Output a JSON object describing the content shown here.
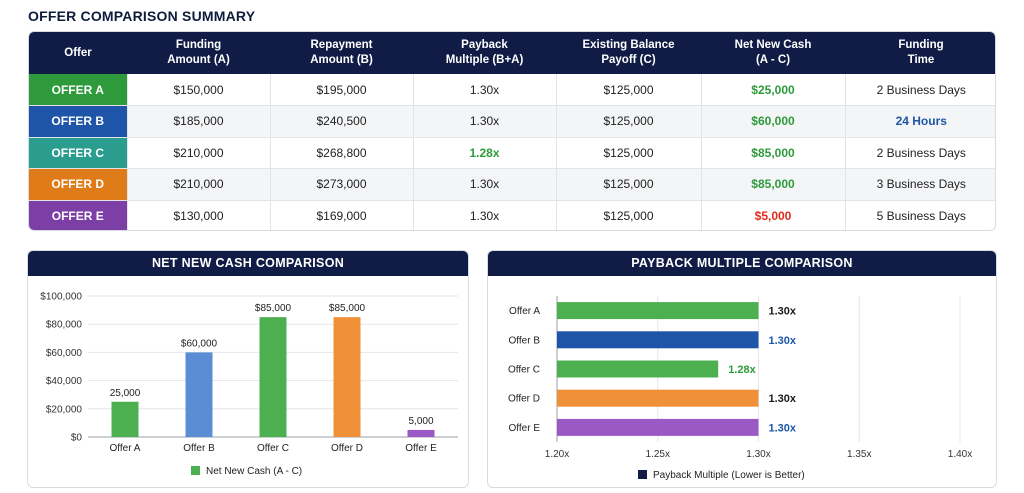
{
  "page_title": "OFFER COMPARISON SUMMARY",
  "table": {
    "headers": [
      "Offer",
      "Funding\nAmount (A)",
      "Repayment\nAmount (B)",
      "Payback\nMultiple (B+A)",
      "Existing Balance\nPayoff (C)",
      "Net New Cash\n(A - C)",
      "Funding\nTime"
    ],
    "rows": [
      {
        "offer": "OFFER A",
        "color": "#2e9a3b",
        "funding": "$150,000",
        "repayment": "$195,000",
        "multiple": "1.30x",
        "payoff": "$125,000",
        "net": "$25,000",
        "time": "2 Business Days"
      },
      {
        "offer": "OFFER B",
        "color": "#1e55a8",
        "funding": "$185,000",
        "repayment": "$240,500",
        "multiple": "1.30x",
        "payoff": "$125,000",
        "net": "$60,000",
        "time": "24 Hours"
      },
      {
        "offer": "OFFER C",
        "color": "#2a9d8f",
        "funding": "$210,000",
        "repayment": "$268,800",
        "multiple": "1.28x",
        "payoff": "$125,000",
        "net": "$85,000",
        "time": "2 Business Days"
      },
      {
        "offer": "OFFER D",
        "color": "#e07b1a",
        "funding": "$210,000",
        "repayment": "$273,000",
        "multiple": "1.30x",
        "payoff": "$125,000",
        "net": "$85,000",
        "time": "3 Business Days"
      },
      {
        "offer": "OFFER E",
        "color": "#7b3fa6",
        "funding": "$130,000",
        "repayment": "$169,000",
        "multiple": "1.30x",
        "payoff": "$125,000",
        "net": "$5,000",
        "time": "5 Business Days"
      }
    ]
  },
  "chart_data": [
    {
      "type": "bar",
      "title": "NET NEW CASH COMPARISON",
      "categories": [
        "Offer A",
        "Offer B",
        "Offer C",
        "Offer D",
        "Offer E"
      ],
      "series": [
        {
          "name": "Net New Cash (A - C)",
          "values": [
            25000,
            60000,
            85000,
            85000,
            5000
          ]
        }
      ],
      "data_labels": [
        "25,000",
        "$60,000",
        "$85,000",
        "$85,000",
        "5,000"
      ],
      "colors": [
        "#4caf50",
        "#5b8dd4",
        "#4caf50",
        "#f0913a",
        "#9b59c6"
      ],
      "y_ticks": [
        "$0",
        "$20,000",
        "$40,000",
        "$60,000",
        "$80,000",
        "$100,000"
      ],
      "ylim": [
        0,
        100000
      ],
      "legend": "bottom",
      "legend_color": "#4caf50",
      "grid": true
    },
    {
      "type": "bar",
      "orientation": "horizontal",
      "title": "PAYBACK MULTIPLE COMPARISON",
      "categories": [
        "Offer A",
        "Offer B",
        "Offer C",
        "Offer D",
        "Offer E"
      ],
      "series": [
        {
          "name": "Payback Multiple (Lower is Better)",
          "values": [
            1.3,
            1.3,
            1.28,
            1.3,
            1.3
          ]
        }
      ],
      "data_labels": [
        "1.30x",
        "1.30x",
        "1.28x",
        "1.30x",
        "1.30x"
      ],
      "colors": [
        "#4caf50",
        "#1e55a8",
        "#4caf50",
        "#f0913a",
        "#9b59c6"
      ],
      "label_colors": [
        "#1a1a1a",
        "#1e55a8",
        "#2e9a3b",
        "#1a1a1a",
        "#1e55a8"
      ],
      "x_ticks": [
        "1.20x",
        "1.25x",
        "1.30x",
        "1.35x",
        "1.40x"
      ],
      "xlim": [
        1.2,
        1.4
      ],
      "legend": "bottom",
      "legend_color": "#101c45",
      "grid": true
    }
  ]
}
